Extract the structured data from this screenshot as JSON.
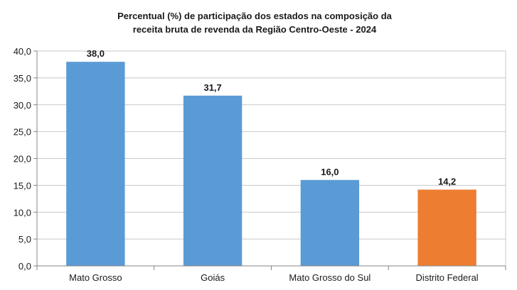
{
  "chart_data": {
    "type": "bar",
    "title_lines": [
      "Percentual (%) de participação dos estados na composição da",
      "receita bruta de revenda da Região Centro-Oeste - 2024"
    ],
    "categories": [
      "Mato Grosso",
      "Goiás",
      "Mato Grosso do Sul",
      "Distrito Federal"
    ],
    "values": [
      38.0,
      31.7,
      16.0,
      14.2
    ],
    "value_labels": [
      "38,0",
      "31,7",
      "16,0",
      "14,2"
    ],
    "bar_colors": [
      "#5b9bd5",
      "#5b9bd5",
      "#5b9bd5",
      "#ed7d31"
    ],
    "ylim": [
      0,
      40
    ],
    "yticks": [
      "0,0",
      "5,0",
      "10,0",
      "15,0",
      "20,0",
      "25,0",
      "30,0",
      "35,0",
      "40,0"
    ],
    "xlabel": "",
    "ylabel": "",
    "grid": true,
    "legend": "none"
  }
}
